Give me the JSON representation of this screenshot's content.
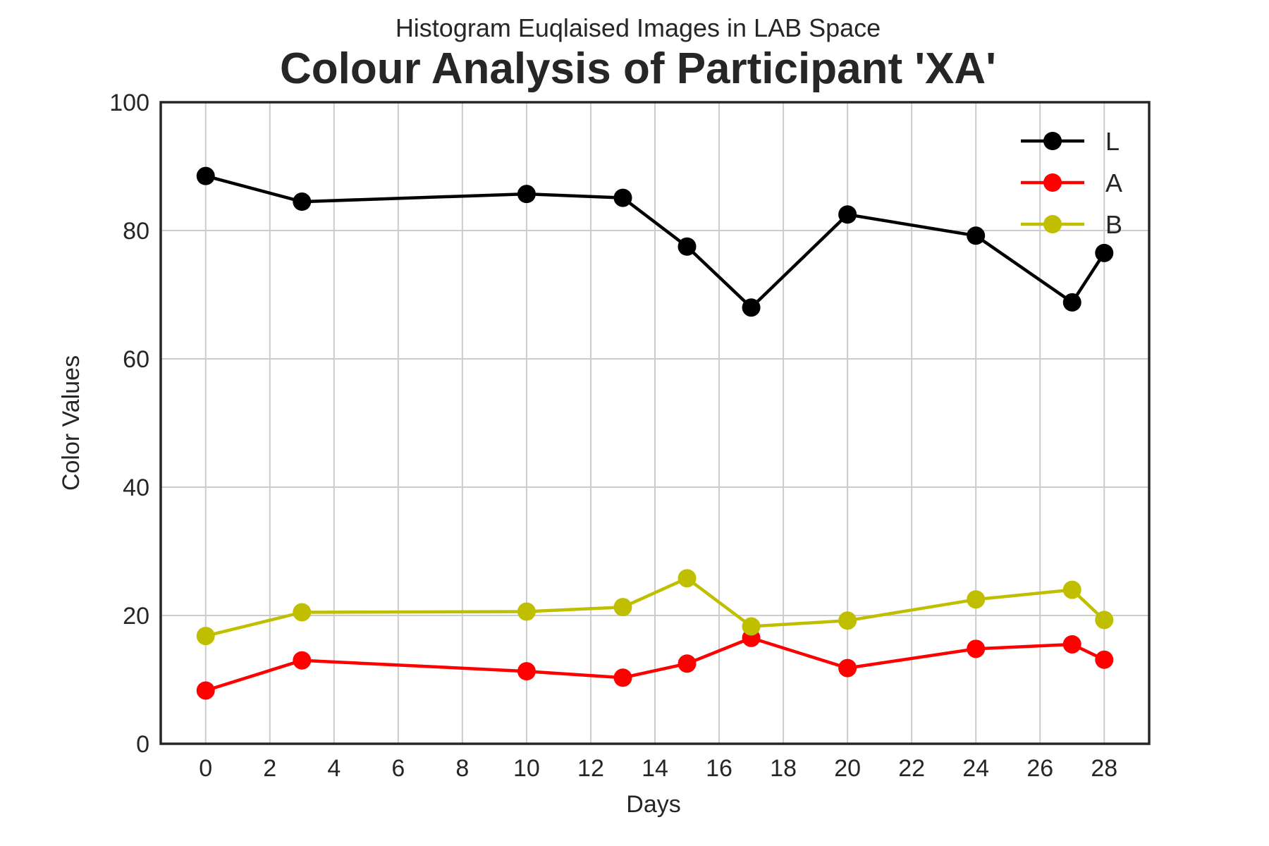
{
  "chart_data": {
    "type": "line",
    "subtitle": "Histogram Euqlaised Images in LAB Space",
    "title": "Colour Analysis of Participant 'XA'",
    "xlabel": "Days",
    "ylabel": "Color Values",
    "xlim": [
      -1.4,
      29.4
    ],
    "ylim": [
      0,
      100
    ],
    "xticks": [
      0,
      2,
      4,
      6,
      8,
      10,
      12,
      14,
      16,
      18,
      20,
      22,
      24,
      26,
      28
    ],
    "yticks": [
      0,
      20,
      40,
      60,
      80,
      100
    ],
    "grid": true,
    "legend_position": "top-right",
    "x": [
      0,
      3,
      10,
      13,
      15,
      17,
      20,
      24,
      27,
      28
    ],
    "series": [
      {
        "name": "L",
        "color": "#000000",
        "values": [
          88.5,
          84.5,
          85.7,
          85.1,
          77.5,
          68.0,
          82.5,
          79.2,
          68.8,
          76.5
        ]
      },
      {
        "name": "A",
        "color": "#ff0000",
        "values": [
          8.3,
          13.0,
          11.3,
          10.3,
          12.5,
          16.5,
          11.8,
          14.8,
          15.5,
          13.1
        ]
      },
      {
        "name": "B",
        "color": "#bfbf00",
        "values": [
          16.8,
          20.5,
          20.6,
          21.3,
          25.8,
          18.3,
          19.2,
          22.5,
          24.0,
          19.3
        ]
      }
    ]
  }
}
